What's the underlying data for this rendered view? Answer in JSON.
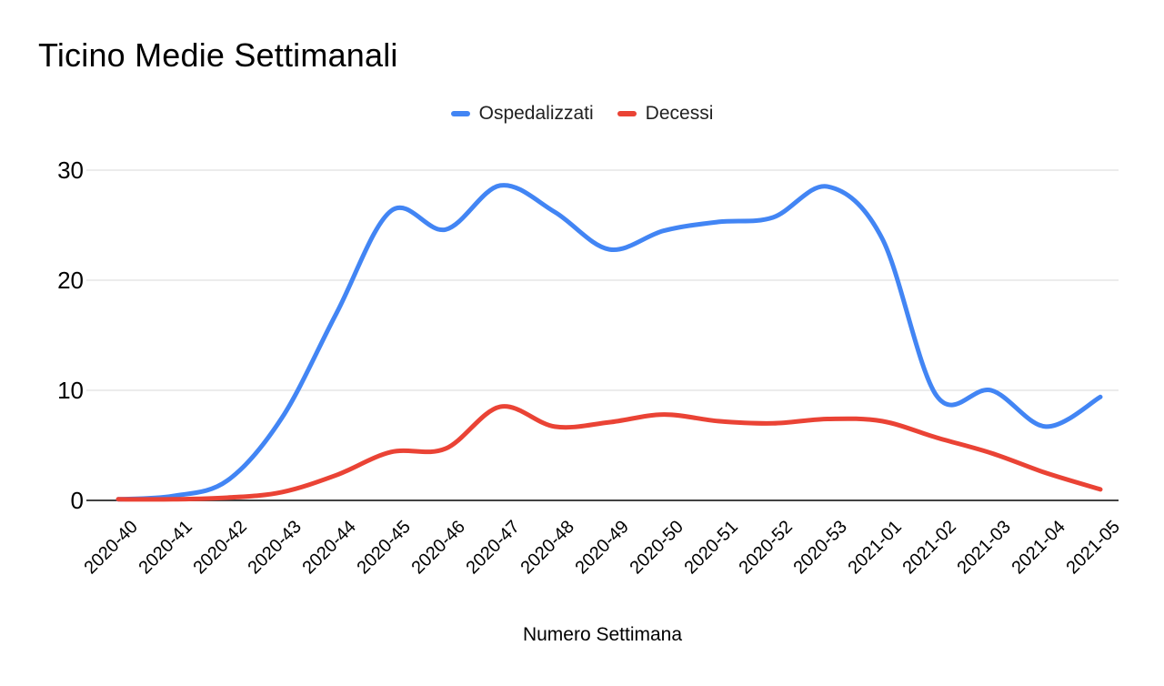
{
  "chart": {
    "background": "#ffffff",
    "gridline_color": "#d9d9d9",
    "axis_line_color": "#424242",
    "text_color": "#000000"
  },
  "chart_data": {
    "type": "line",
    "title": "Ticino Medie Settimanali",
    "xlabel": "Numero Settimana",
    "ylabel": "",
    "ylim": [
      0,
      30
    ],
    "yticks": [
      0,
      10,
      20,
      30
    ],
    "grid": true,
    "curve": "smooth",
    "legend_position": "top-center",
    "categories": [
      "2020-40",
      "2020-41",
      "2020-42",
      "2020-43",
      "2020-44",
      "2020-45",
      "2020-46",
      "2020-47",
      "2020-48",
      "2020-49",
      "2020-50",
      "2020-51",
      "2020-52",
      "2020-53",
      "2021-01",
      "2021-02",
      "2021-03",
      "2021-04",
      "2021-05"
    ],
    "series": [
      {
        "name": "Ospedalizzati",
        "color": "#4285F4",
        "values": [
          0.1,
          0.4,
          1.8,
          7.5,
          17.0,
          26.3,
          24.6,
          28.6,
          26.2,
          22.8,
          24.5,
          25.3,
          25.7,
          28.5,
          23.8,
          9.5,
          10.0,
          6.7,
          9.4
        ]
      },
      {
        "name": "Decessi",
        "color": "#EA4335",
        "values": [
          0.1,
          0.1,
          0.25,
          0.75,
          2.3,
          4.4,
          4.7,
          8.5,
          6.7,
          7.1,
          7.8,
          7.2,
          7.0,
          7.4,
          7.2,
          5.7,
          4.3,
          2.5,
          1.0
        ]
      }
    ]
  }
}
